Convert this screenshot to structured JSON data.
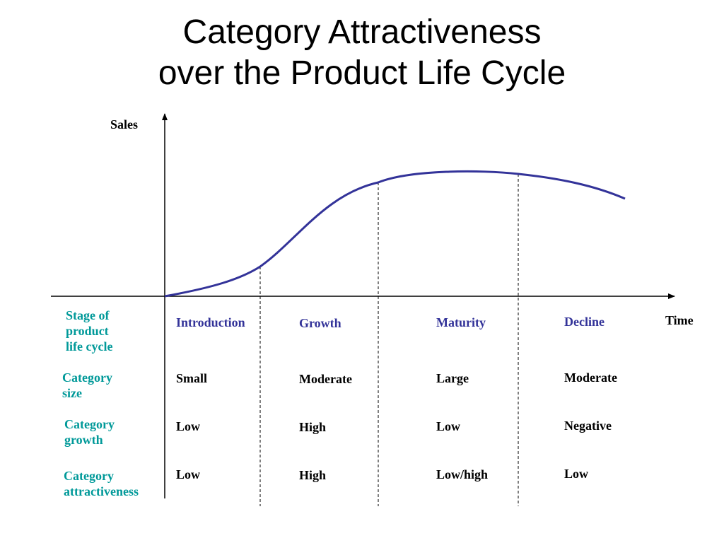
{
  "slide": {
    "title_line1": "Category Attractiveness",
    "title_line2": "over the Product Life Cycle"
  },
  "axes": {
    "y_label": "Sales",
    "x_label": "Time"
  },
  "row_labels": {
    "stage": [
      "Stage of",
      "product",
      "life cycle"
    ],
    "size": [
      "Category",
      "size"
    ],
    "growth": [
      "Category",
      "growth"
    ],
    "attractiveness": [
      "Category",
      "attractiveness"
    ]
  },
  "stages": [
    "Introduction",
    "Growth",
    "Maturity",
    "Decline"
  ],
  "category_size": [
    "Small",
    "Moderate",
    "Large",
    "Moderate"
  ],
  "category_growth": [
    "Low",
    "High",
    "Low",
    "Negative"
  ],
  "category_attractiveness": [
    "Low",
    "High",
    "Low/high",
    "Low"
  ],
  "colors": {
    "curve": "#333399",
    "row_label": "#009999",
    "stage_label": "#333399",
    "text": "#000000"
  }
}
